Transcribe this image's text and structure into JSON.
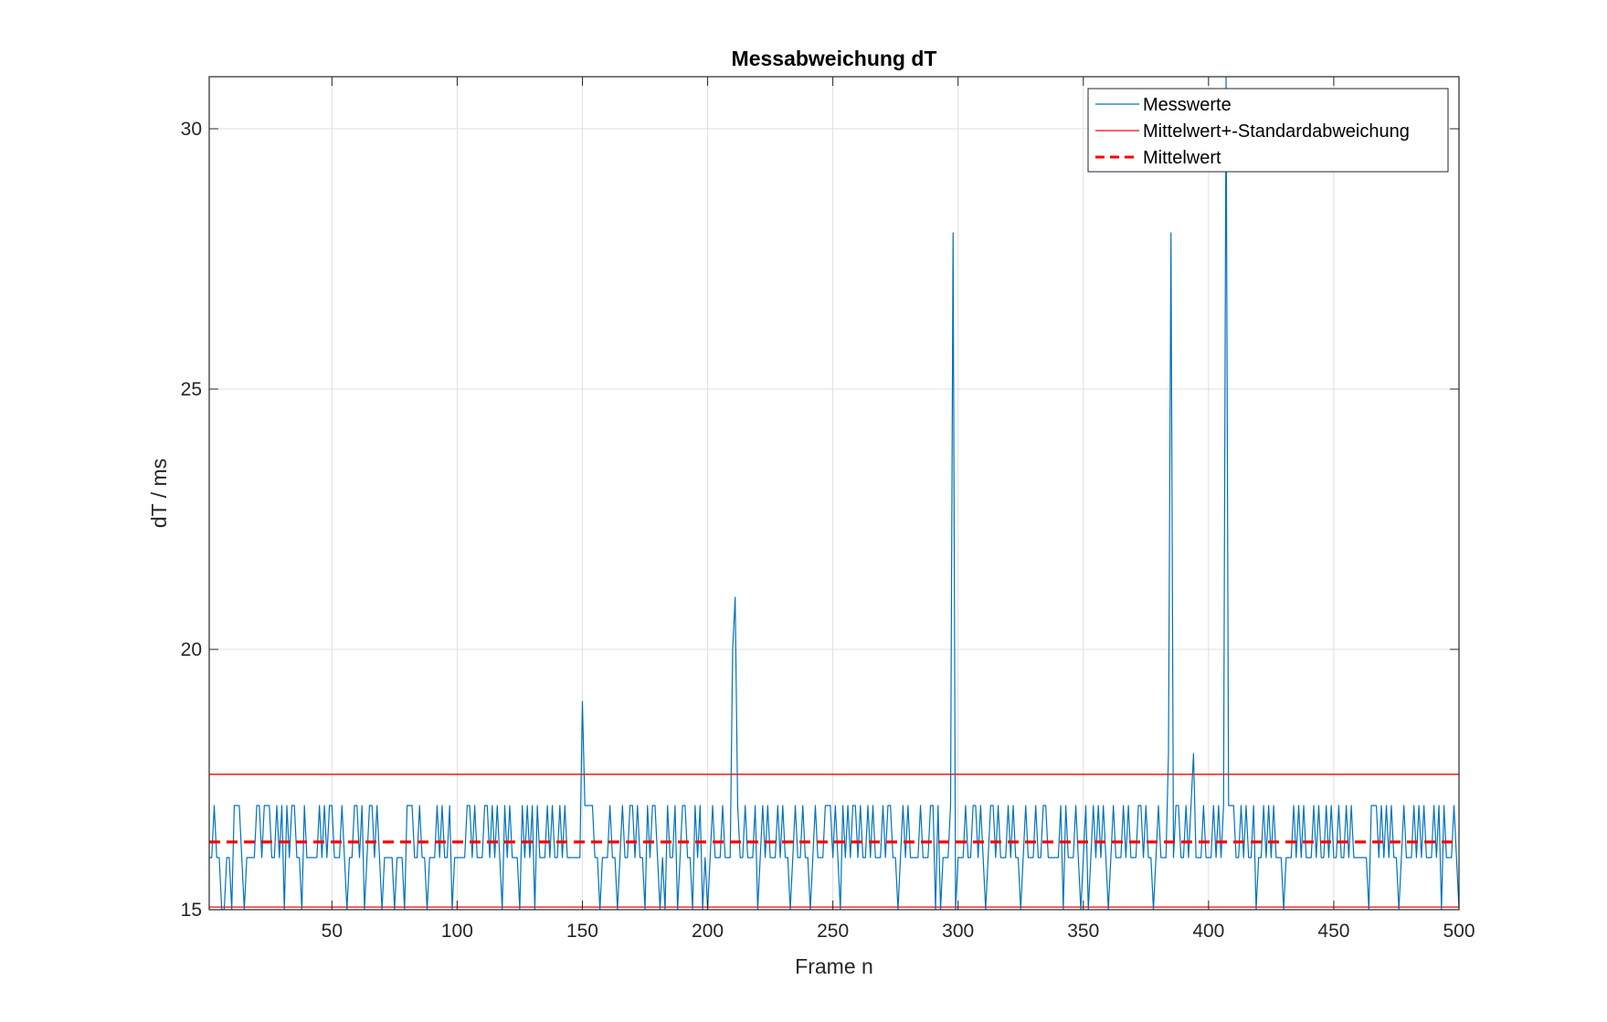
{
  "chart_data": {
    "type": "line",
    "title": "Messabweichung dT",
    "xlabel": "Frame n",
    "ylabel": "dT / ms",
    "xlim": [
      1,
      500
    ],
    "ylim": [
      15,
      31
    ],
    "xticks": [
      50,
      100,
      150,
      200,
      250,
      300,
      350,
      400,
      450,
      500
    ],
    "yticks": [
      15,
      20,
      25,
      30
    ],
    "grid": true,
    "legend_position": "top-right",
    "series": [
      {
        "name": "Messwerte",
        "style": "solid",
        "color": "#0072BD",
        "x_start": 1,
        "values": [
          16,
          16,
          17,
          16,
          16,
          15,
          15,
          16,
          16,
          15,
          17,
          17,
          17,
          16,
          15,
          16,
          16,
          16,
          16,
          17,
          17,
          16,
          17,
          17,
          17,
          16,
          16,
          17,
          16,
          17,
          15,
          17,
          16,
          17,
          17,
          16,
          16,
          15,
          17,
          16,
          16,
          16,
          16,
          16,
          17,
          16,
          17,
          16,
          17,
          17,
          16,
          16,
          16,
          17,
          16,
          15,
          16,
          16,
          17,
          17,
          16,
          17,
          15,
          16,
          17,
          17,
          16,
          17,
          16,
          15,
          16,
          16,
          16,
          16,
          15,
          16,
          16,
          16,
          15,
          17,
          17,
          17,
          16,
          16,
          17,
          16,
          16,
          15,
          16,
          16,
          16,
          17,
          16,
          17,
          16,
          16,
          17,
          15,
          16,
          16,
          16,
          16,
          16,
          17,
          17,
          16,
          17,
          16,
          16,
          16,
          17,
          17,
          16,
          17,
          16,
          17,
          16,
          15,
          17,
          16,
          17,
          16,
          16,
          16,
          15,
          17,
          16,
          17,
          16,
          17,
          15,
          17,
          16,
          16,
          16,
          17,
          16,
          17,
          16,
          16,
          17,
          16,
          17,
          16,
          16,
          16,
          16,
          16,
          16,
          19,
          17,
          17,
          17,
          17,
          16,
          16,
          15,
          16,
          16,
          16,
          17,
          16,
          16,
          15,
          16,
          17,
          16,
          16,
          17,
          17,
          16,
          17,
          16,
          16,
          15,
          17,
          16,
          17,
          17,
          16,
          15,
          16,
          15,
          17,
          16,
          16,
          17,
          15,
          16,
          17,
          17,
          16,
          16,
          15,
          17,
          16,
          17,
          15,
          16,
          15,
          16,
          17,
          16,
          16,
          16,
          17,
          16,
          16,
          16,
          20,
          21,
          17,
          16,
          16,
          17,
          16,
          16,
          16,
          17,
          15,
          16,
          17,
          16,
          17,
          16,
          16,
          16,
          17,
          16,
          17,
          16,
          16,
          15,
          16,
          17,
          16,
          16,
          17,
          16,
          16,
          15,
          16,
          17,
          16,
          16,
          16,
          17,
          17,
          17,
          16,
          17,
          16,
          15,
          17,
          16,
          17,
          16,
          17,
          17,
          16,
          17,
          16,
          16,
          17,
          16,
          17,
          16,
          16,
          16,
          17,
          16,
          17,
          17,
          16,
          16,
          15,
          16,
          17,
          16,
          17,
          16,
          16,
          16,
          16,
          17,
          16,
          16,
          16,
          17,
          17,
          15,
          17,
          15,
          16,
          16,
          16,
          17,
          28,
          15,
          16,
          16,
          16,
          17,
          16,
          16,
          17,
          17,
          16,
          17,
          16,
          15,
          16,
          17,
          17,
          16,
          17,
          16,
          16,
          16,
          17,
          16,
          17,
          16,
          16,
          15,
          16,
          17,
          16,
          16,
          16,
          17,
          16,
          16,
          17,
          17,
          16,
          16,
          16,
          16,
          16,
          17,
          15,
          17,
          16,
          16,
          16,
          17,
          16,
          15,
          16,
          17,
          15,
          16,
          17,
          16,
          17,
          16,
          17,
          16,
          15,
          16,
          17,
          16,
          16,
          16,
          17,
          16,
          17,
          16,
          16,
          16,
          17,
          17,
          16,
          17,
          16,
          16,
          15,
          16,
          17,
          16,
          16,
          16,
          18,
          28,
          16,
          17,
          17,
          16,
          16,
          17,
          16,
          17,
          18,
          16,
          16,
          16,
          17,
          16,
          16,
          16,
          17,
          16,
          17,
          16,
          17,
          31,
          17,
          17,
          17,
          16,
          16,
          17,
          16,
          17,
          16,
          16,
          17,
          15,
          16,
          16,
          17,
          16,
          17,
          16,
          17,
          16,
          16,
          16,
          15,
          16,
          16,
          16,
          17,
          16,
          17,
          16,
          17,
          16,
          16,
          16,
          17,
          16,
          17,
          16,
          16,
          17,
          16,
          17,
          16,
          16,
          17,
          16,
          16,
          17,
          16,
          17,
          16,
          16,
          16,
          16,
          16,
          16,
          15,
          17,
          17,
          17,
          16,
          17,
          16,
          17,
          16,
          17,
          16,
          16,
          15,
          16,
          17,
          16,
          16,
          16,
          17,
          16,
          17,
          16,
          17,
          16,
          16,
          16,
          17,
          16,
          17,
          15,
          17,
          16,
          16,
          16,
          17,
          16,
          15,
          16,
          17,
          16,
          17
        ]
      },
      {
        "name": "Mittelwert+-Standardabweichung",
        "style": "solid",
        "color": "#FF0000",
        "hlines": [
          17.6,
          15.05
        ]
      },
      {
        "name": "Mittelwert",
        "style": "dashed",
        "color": "#FF0000",
        "hlines": [
          16.3
        ]
      }
    ]
  }
}
